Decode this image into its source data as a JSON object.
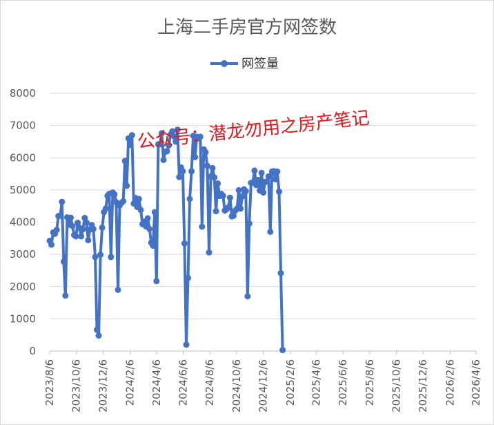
{
  "colors": {
    "series": "#4472c4",
    "grid": "#d9d9d9",
    "watermark": "#e0191f"
  },
  "watermark": "公众号：潜龙勿用之房产笔记",
  "chart_data": {
    "type": "line",
    "title": "上海二手房官方网签数",
    "legend_position": "top",
    "grid": true,
    "ylim": [
      0,
      8000
    ],
    "y_ticks": [
      "0",
      "1000",
      "2000",
      "3000",
      "4000",
      "5000",
      "6000",
      "7000",
      "8000"
    ],
    "x_ticks": [
      "2023/8/6",
      "2023/10/6",
      "2023/12/6",
      "2024/2/6",
      "2024/4/6",
      "2024/6/6",
      "2024/8/6",
      "2024/10/6",
      "2024/12/6",
      "2025/2/6",
      "2025/4/6",
      "2025/6/6",
      "2025/8/6",
      "2025/10/6",
      "2025/12/6",
      "2026/2/6",
      "2026/4/6"
    ],
    "x_range": [
      "2023-08-06",
      "2026-04-06"
    ],
    "series": [
      {
        "name": "网签量",
        "points": [
          [
            "2023-08-06",
            3420
          ],
          [
            "2023-08-10",
            3300
          ],
          [
            "2023-08-14",
            3680
          ],
          [
            "2023-08-18",
            3640
          ],
          [
            "2023-08-22",
            3760
          ],
          [
            "2023-08-26",
            4190
          ],
          [
            "2023-08-30",
            4200
          ],
          [
            "2023-09-03",
            4630
          ],
          [
            "2023-09-07",
            2780
          ],
          [
            "2023-09-11",
            1720
          ],
          [
            "2023-09-15",
            4150
          ],
          [
            "2023-09-19",
            3920
          ],
          [
            "2023-09-23",
            4140
          ],
          [
            "2023-09-27",
            3880
          ],
          [
            "2023-10-01",
            3600
          ],
          [
            "2023-10-05",
            3560
          ],
          [
            "2023-10-09",
            3980
          ],
          [
            "2023-10-13",
            3830
          ],
          [
            "2023-10-17",
            3560
          ],
          [
            "2023-10-21",
            3780
          ],
          [
            "2023-10-25",
            4130
          ],
          [
            "2023-10-29",
            3990
          ],
          [
            "2023-11-02",
            3440
          ],
          [
            "2023-11-06",
            3770
          ],
          [
            "2023-11-10",
            3910
          ],
          [
            "2023-11-14",
            3790
          ],
          [
            "2023-11-18",
            2920
          ],
          [
            "2023-11-22",
            660
          ],
          [
            "2023-11-26",
            480
          ],
          [
            "2023-11-30",
            2990
          ],
          [
            "2023-12-04",
            3830
          ],
          [
            "2023-12-08",
            4310
          ],
          [
            "2023-12-12",
            4420
          ],
          [
            "2023-12-16",
            4820
          ],
          [
            "2023-12-20",
            4880
          ],
          [
            "2023-12-24",
            2920
          ],
          [
            "2023-12-28",
            4920
          ],
          [
            "2024-01-01",
            4860
          ],
          [
            "2024-01-05",
            4620
          ],
          [
            "2024-01-09",
            1900
          ],
          [
            "2024-01-13",
            4520
          ],
          [
            "2024-01-17",
            4600
          ],
          [
            "2024-01-21",
            4650
          ],
          [
            "2024-01-25",
            5900
          ],
          [
            "2024-01-29",
            5130
          ],
          [
            "2024-02-02",
            6600
          ],
          [
            "2024-02-06",
            6400
          ],
          [
            "2024-02-10",
            6700
          ],
          [
            "2024-02-14",
            4580
          ],
          [
            "2024-02-18",
            4750
          ],
          [
            "2024-02-22",
            4470
          ],
          [
            "2024-02-26",
            4720
          ],
          [
            "2024-03-01",
            4380
          ],
          [
            "2024-03-05",
            3940
          ],
          [
            "2024-03-09",
            4020
          ],
          [
            "2024-03-13",
            3870
          ],
          [
            "2024-03-17",
            4120
          ],
          [
            "2024-03-21",
            3790
          ],
          [
            "2024-03-25",
            3360
          ],
          [
            "2024-03-29",
            3270
          ],
          [
            "2024-04-02",
            4310
          ],
          [
            "2024-04-06",
            2170
          ],
          [
            "2024-04-10",
            6420
          ],
          [
            "2024-04-14",
            6420
          ],
          [
            "2024-04-18",
            6760
          ],
          [
            "2024-04-22",
            5930
          ],
          [
            "2024-04-26",
            6190
          ],
          [
            "2024-04-30",
            6200
          ],
          [
            "2024-05-04",
            6380
          ],
          [
            "2024-05-08",
            6720
          ],
          [
            "2024-05-12",
            6820
          ],
          [
            "2024-05-16",
            6660
          ],
          [
            "2024-05-20",
            6500
          ],
          [
            "2024-05-24",
            6870
          ],
          [
            "2024-05-28",
            5400
          ],
          [
            "2024-06-01",
            5700
          ],
          [
            "2024-06-05",
            5580
          ],
          [
            "2024-06-09",
            3340
          ],
          [
            "2024-06-13",
            200
          ],
          [
            "2024-06-17",
            2270
          ],
          [
            "2024-06-21",
            4720
          ],
          [
            "2024-06-25",
            5580
          ],
          [
            "2024-06-29",
            6680
          ],
          [
            "2024-07-03",
            6020
          ],
          [
            "2024-07-07",
            6650
          ],
          [
            "2024-07-11",
            6600
          ],
          [
            "2024-07-15",
            6650
          ],
          [
            "2024-07-19",
            3860
          ],
          [
            "2024-07-23",
            6260
          ],
          [
            "2024-07-27",
            6170
          ],
          [
            "2024-07-31",
            5750
          ],
          [
            "2024-08-04",
            3060
          ],
          [
            "2024-08-08",
            5420
          ],
          [
            "2024-08-12",
            5680
          ],
          [
            "2024-08-16",
            5390
          ],
          [
            "2024-08-20",
            4340
          ],
          [
            "2024-08-24",
            5200
          ],
          [
            "2024-08-28",
            4810
          ],
          [
            "2024-09-01",
            4880
          ],
          [
            "2024-09-05",
            4820
          ],
          [
            "2024-09-09",
            4360
          ],
          [
            "2024-09-13",
            4400
          ],
          [
            "2024-09-17",
            4460
          ],
          [
            "2024-09-21",
            4760
          ],
          [
            "2024-09-25",
            4180
          ],
          [
            "2024-09-29",
            4200
          ],
          [
            "2024-10-03",
            4360
          ],
          [
            "2024-10-07",
            4420
          ],
          [
            "2024-10-11",
            4990
          ],
          [
            "2024-10-15",
            4420
          ],
          [
            "2024-10-19",
            4800
          ],
          [
            "2024-10-23",
            5020
          ],
          [
            "2024-10-27",
            4960
          ],
          [
            "2024-10-31",
            1700
          ],
          [
            "2024-11-04",
            3960
          ],
          [
            "2024-11-08",
            5220
          ],
          [
            "2024-11-12",
            5230
          ],
          [
            "2024-11-16",
            5600
          ],
          [
            "2024-11-20",
            5150
          ],
          [
            "2024-11-24",
            5310
          ],
          [
            "2024-11-28",
            4980
          ],
          [
            "2024-12-02",
            5530
          ],
          [
            "2024-12-06",
            4920
          ],
          [
            "2024-12-10",
            5250
          ],
          [
            "2024-12-14",
            5260
          ],
          [
            "2024-12-18",
            5420
          ],
          [
            "2024-12-22",
            3700
          ],
          [
            "2024-12-26",
            5570
          ],
          [
            "2024-12-30",
            5580
          ],
          [
            "2025-01-03",
            5330
          ],
          [
            "2025-01-07",
            5570
          ],
          [
            "2025-01-11",
            4950
          ],
          [
            "2025-01-15",
            2420
          ],
          [
            "2025-01-19",
            30
          ]
        ]
      }
    ]
  }
}
